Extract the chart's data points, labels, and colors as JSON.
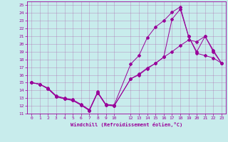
{
  "xlabel": "Windchill (Refroidissement éolien,°C)",
  "bg_color": "#c8ecec",
  "line_color": "#990099",
  "grid_color": "#aa66aa",
  "xlim": [
    -0.5,
    23.5
  ],
  "ylim": [
    11,
    25.5
  ],
  "yticks": [
    11,
    12,
    13,
    14,
    15,
    16,
    17,
    18,
    19,
    20,
    21,
    22,
    23,
    24,
    25
  ],
  "xticks": [
    0,
    1,
    2,
    3,
    4,
    5,
    6,
    7,
    8,
    9,
    10,
    12,
    13,
    14,
    15,
    16,
    17,
    18,
    19,
    20,
    21,
    22,
    23
  ],
  "line1_x": [
    0,
    1,
    2,
    3,
    4,
    5,
    6,
    7,
    8,
    9,
    10,
    12,
    13,
    14,
    15,
    16,
    17,
    18,
    19,
    20,
    21,
    22,
    23
  ],
  "line1_y": [
    15.0,
    14.8,
    14.3,
    13.3,
    13.0,
    12.8,
    12.2,
    11.5,
    13.8,
    12.2,
    12.1,
    17.4,
    18.5,
    20.8,
    22.2,
    23.0,
    24.1,
    24.8,
    21.0,
    18.8,
    18.5,
    18.2,
    17.5
  ],
  "line2_x": [
    0,
    1,
    2,
    3,
    4,
    5,
    6,
    7,
    8,
    9,
    10,
    12,
    13,
    14,
    15,
    16,
    17,
    18,
    19,
    20,
    21,
    22,
    23
  ],
  "line2_y": [
    15.0,
    14.8,
    14.2,
    13.2,
    12.9,
    12.7,
    12.1,
    11.4,
    13.7,
    12.1,
    12.0,
    15.5,
    16.0,
    16.8,
    17.5,
    18.3,
    19.0,
    19.8,
    20.5,
    20.3,
    21.0,
    19.2,
    17.5
  ],
  "line3_x": [
    0,
    1,
    2,
    3,
    4,
    5,
    6,
    7,
    8,
    9,
    10,
    12,
    13,
    14,
    15,
    16,
    17,
    18,
    19,
    20,
    21,
    22,
    23
  ],
  "line3_y": [
    15.0,
    14.8,
    14.2,
    13.2,
    12.9,
    12.7,
    12.1,
    11.4,
    13.7,
    12.1,
    12.0,
    15.5,
    16.1,
    16.9,
    17.5,
    18.3,
    23.2,
    24.5,
    21.0,
    19.0,
    21.0,
    19.0,
    17.5
  ]
}
